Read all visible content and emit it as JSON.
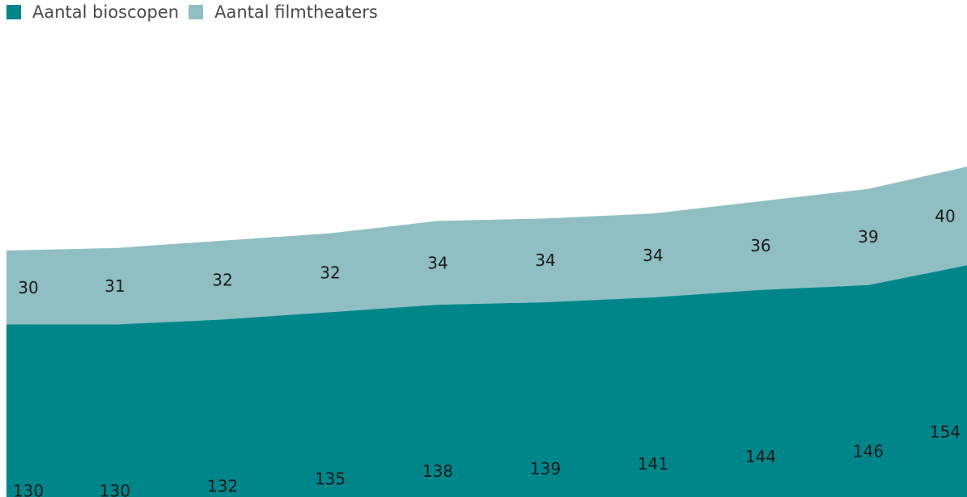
{
  "legend": {
    "series0": "Aantal bioscopen",
    "series1": "Aantal filmtheaters"
  },
  "colors": {
    "bioscopen": "#00868a",
    "filmtheaters": "#8fbfc3"
  },
  "chart_data": {
    "type": "area",
    "stacked": true,
    "legend_position": "top-left",
    "grid": false,
    "x": [
      "",
      "",
      "",
      "",
      "",
      "",
      "",
      "",
      "",
      ""
    ],
    "series": [
      {
        "name": "Aantal bioscopen",
        "values": [
          130,
          130,
          132,
          135,
          138,
          139,
          141,
          144,
          146,
          154
        ]
      },
      {
        "name": "Aantal filmtheaters",
        "values": [
          30,
          31,
          32,
          32,
          34,
          34,
          34,
          36,
          39,
          40
        ]
      }
    ]
  }
}
